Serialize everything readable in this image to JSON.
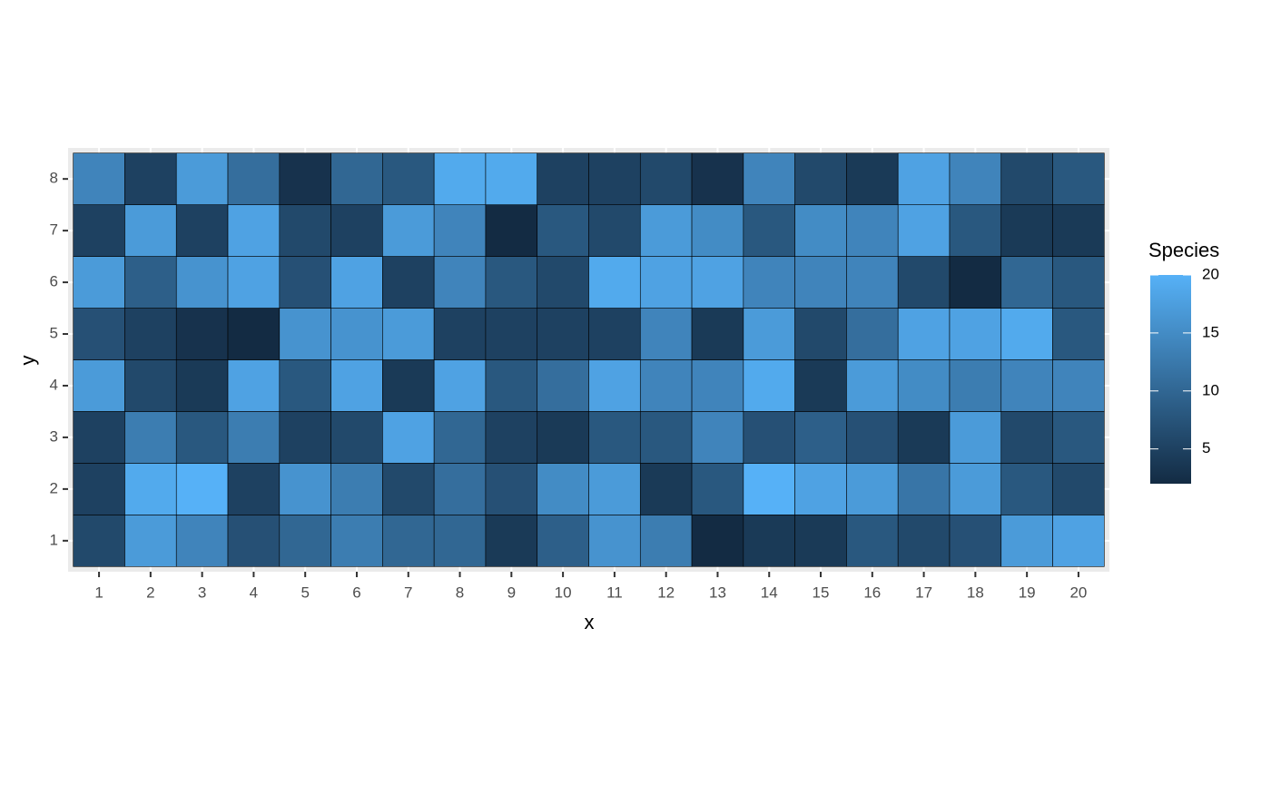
{
  "chart_data": {
    "type": "heatmap",
    "x": [
      1,
      2,
      3,
      4,
      5,
      6,
      7,
      8,
      9,
      10,
      11,
      12,
      13,
      14,
      15,
      16,
      17,
      18,
      19,
      20
    ],
    "y": [
      1,
      2,
      3,
      4,
      5,
      6,
      7,
      8
    ],
    "z": [
      [
        6,
        17,
        14,
        7,
        10,
        13,
        10,
        10,
        4,
        9,
        16,
        13,
        2,
        4,
        4,
        8,
        6,
        7,
        17,
        18
      ],
      [
        5,
        19,
        20,
        5,
        16,
        13,
        6,
        11,
        7,
        15,
        17,
        4,
        8,
        20,
        18,
        17,
        12,
        17,
        8,
        6
      ],
      [
        5,
        13,
        8,
        13,
        5,
        6,
        18,
        10,
        5,
        4,
        8,
        8,
        14,
        7,
        9,
        7,
        4,
        17,
        6,
        8
      ],
      [
        17,
        6,
        4,
        18,
        8,
        18,
        4,
        18,
        8,
        11,
        18,
        14,
        14,
        19,
        4,
        17,
        15,
        13,
        14,
        14
      ],
      [
        7,
        5,
        3,
        2,
        16,
        16,
        17,
        5,
        5,
        5,
        5,
        14,
        4,
        17,
        6,
        11,
        18,
        18,
        19,
        8
      ],
      [
        17,
        9,
        16,
        18,
        7,
        18,
        5,
        14,
        8,
        6,
        19,
        18,
        18,
        14,
        14,
        14,
        6,
        2,
        10,
        8
      ],
      [
        5,
        17,
        5,
        18,
        6,
        5,
        17,
        14,
        2,
        8,
        6,
        17,
        15,
        8,
        15,
        14,
        18,
        8,
        4,
        4
      ],
      [
        14,
        5,
        17,
        11,
        3,
        10,
        8,
        19,
        19,
        5,
        5,
        6,
        3,
        14,
        6,
        4,
        18,
        14,
        6,
        8
      ]
    ],
    "x_label": "x",
    "y_label": "y",
    "xlim": [
      0.4,
      20.6
    ],
    "ylim": [
      0.4,
      8.6
    ],
    "xticks": [
      1,
      2,
      3,
      4,
      5,
      6,
      7,
      8,
      9,
      10,
      11,
      12,
      13,
      14,
      15,
      16,
      17,
      18,
      19,
      20
    ],
    "yticks": [
      1,
      2,
      3,
      4,
      5,
      6,
      7,
      8
    ],
    "grid": true,
    "legend_title": "Species",
    "color_low": "#132b43",
    "color_high": "#56b1f7",
    "color_limits": [
      2,
      20
    ],
    "legend_ticks": [
      5,
      10,
      15,
      20
    ]
  }
}
